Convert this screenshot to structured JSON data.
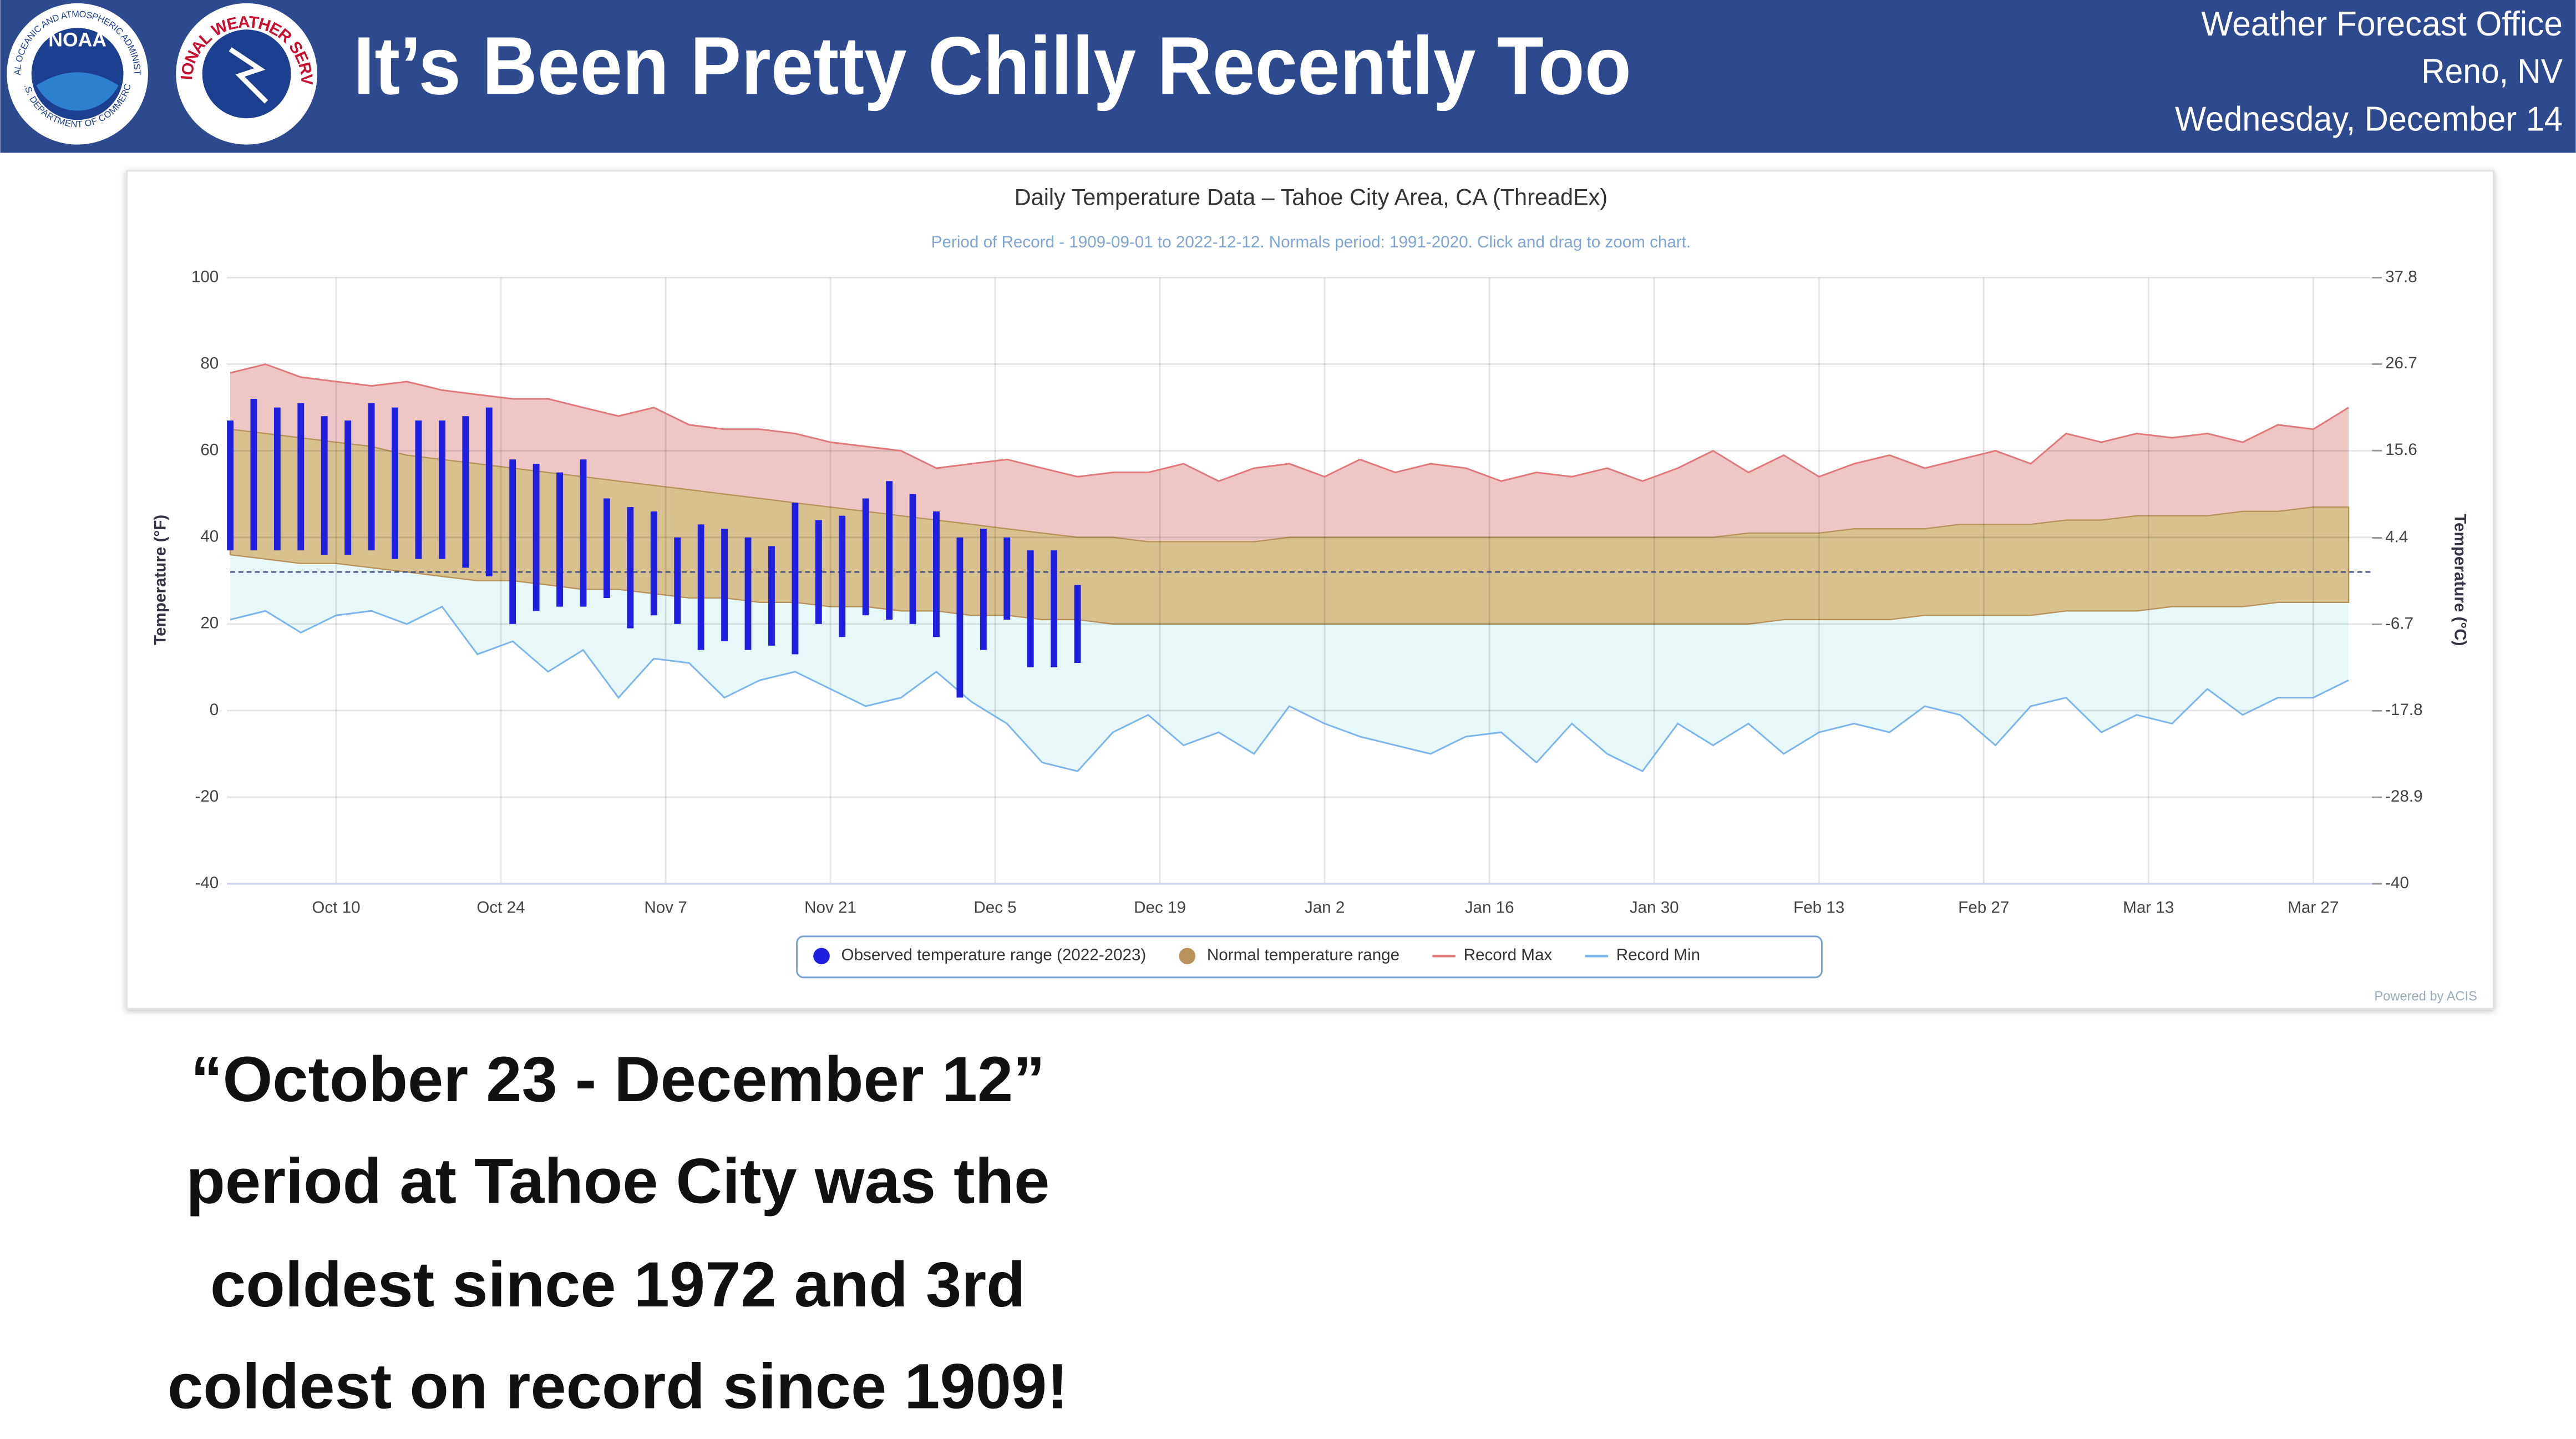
{
  "header": {
    "title": "It’s Been Pretty Chilly Recently Too",
    "office": [
      "Weather Forecast Office",
      "Reno, NV",
      "Wednesday, December 14"
    ],
    "logos": {
      "noaa": "NOAA",
      "noaa_ring": "NATIONAL OCEANIC AND ATMOSPHERIC ADMINISTRATION",
      "noaa_ring_bottom": "U.S. DEPARTMENT OF COMMERCE",
      "nws_ring": "NATIONAL WEATHER SERVICE"
    }
  },
  "chart_data": {
    "type": "temperature-range",
    "title": "Daily Temperature Data – Tahoe City Area, CA (ThreadEx)",
    "subtitle": "Period of Record - 1909-09-01 to 2022-12-12. Normals period: 1991-2020. Click and drag to zoom chart.",
    "y_label": "Temperature (°F)",
    "y2_label": "Temperature (°C)",
    "credit": "Powered by ACIS",
    "xlim": [
      "Oct 1",
      "Apr 1"
    ],
    "xticks": [
      "Oct 10",
      "Oct 24",
      "Nov 7",
      "Nov 21",
      "Dec 5",
      "Dec 19",
      "Jan 2",
      "Jan 16",
      "Jan 30",
      "Feb 13",
      "Feb 27",
      "Mar 13",
      "Mar 27"
    ],
    "ylim": [
      -40,
      100
    ],
    "yticks": [
      -40,
      -20,
      0,
      20,
      40,
      60,
      80,
      100
    ],
    "y2lim": [
      -40,
      37.8
    ],
    "y2ticks": [
      -40,
      -28.9,
      -17.8,
      -6.7,
      4.4,
      15.6,
      26.7,
      37.8
    ],
    "grid": true,
    "reference_line": 32,
    "legend": "bottom",
    "x": [
      "Oct 1",
      "Oct 4",
      "Oct 7",
      "Oct 10",
      "Oct 13",
      "Oct 16",
      "Oct 19",
      "Oct 22",
      "Oct 25",
      "Oct 28",
      "Oct 31",
      "Nov 3",
      "Nov 6",
      "Nov 9",
      "Nov 12",
      "Nov 15",
      "Nov 18",
      "Nov 21",
      "Nov 24",
      "Nov 27",
      "Nov 30",
      "Dec 3",
      "Dec 6",
      "Dec 9",
      "Dec 12",
      "Dec 15",
      "Dec 18",
      "Dec 21",
      "Dec 24",
      "Dec 27",
      "Dec 30",
      "Jan 2",
      "Jan 5",
      "Jan 8",
      "Jan 11",
      "Jan 14",
      "Jan 17",
      "Jan 20",
      "Jan 23",
      "Jan 26",
      "Jan 29",
      "Feb 1",
      "Feb 4",
      "Feb 7",
      "Feb 10",
      "Feb 13",
      "Feb 16",
      "Feb 19",
      "Feb 22",
      "Feb 25",
      "Feb 28",
      "Mar 3",
      "Mar 6",
      "Mar 9",
      "Mar 12",
      "Mar 15",
      "Mar 18",
      "Mar 21",
      "Mar 24",
      "Mar 27",
      "Mar 30"
    ],
    "series": [
      {
        "name": "Observed temperature range (2022-2023)",
        "type": "columnrange",
        "color": "#1f1fe0",
        "x": [
          "Oct 1",
          "Oct 3",
          "Oct 5",
          "Oct 7",
          "Oct 9",
          "Oct 11",
          "Oct 13",
          "Oct 15",
          "Oct 17",
          "Oct 19",
          "Oct 21",
          "Oct 23",
          "Oct 25",
          "Oct 27",
          "Oct 29",
          "Oct 31",
          "Nov 2",
          "Nov 4",
          "Nov 6",
          "Nov 8",
          "Nov 10",
          "Nov 12",
          "Nov 14",
          "Nov 16",
          "Nov 18",
          "Nov 20",
          "Nov 22",
          "Nov 24",
          "Nov 26",
          "Nov 28",
          "Nov 30",
          "Dec 2",
          "Dec 4",
          "Dec 6",
          "Dec 8",
          "Dec 10",
          "Dec 12"
        ],
        "low": [
          37,
          37,
          37,
          37,
          36,
          36,
          37,
          35,
          35,
          35,
          33,
          31,
          20,
          23,
          24,
          24,
          26,
          19,
          22,
          20,
          14,
          16,
          14,
          15,
          13,
          20,
          17,
          22,
          21,
          20,
          17,
          3,
          14,
          21,
          10,
          10,
          11
        ],
        "high": [
          67,
          72,
          70,
          71,
          68,
          67,
          71,
          70,
          67,
          67,
          68,
          70,
          58,
          57,
          55,
          58,
          49,
          47,
          46,
          40,
          43,
          42,
          40,
          38,
          48,
          44,
          45,
          49,
          53,
          50,
          46,
          40,
          42,
          40,
          37,
          37,
          29
        ]
      },
      {
        "name": "Normal temperature range",
        "type": "arearange",
        "color": "#b8925a",
        "fill": "#d8c08f",
        "high": [
          65,
          64,
          63,
          62,
          61,
          59,
          58,
          57,
          56,
          55,
          54,
          53,
          52,
          51,
          50,
          49,
          48,
          47,
          46,
          45,
          44,
          43,
          42,
          41,
          40,
          40,
          39,
          39,
          39,
          39,
          40,
          40,
          40,
          40,
          40,
          40,
          40,
          40,
          40,
          40,
          40,
          40,
          40,
          41,
          41,
          41,
          42,
          42,
          42,
          43,
          43,
          43,
          44,
          44,
          45,
          45,
          45,
          46,
          46,
          47,
          47
        ],
        "low": [
          36,
          35,
          34,
          34,
          33,
          32,
          31,
          30,
          30,
          29,
          28,
          28,
          27,
          26,
          26,
          25,
          25,
          24,
          24,
          23,
          23,
          22,
          22,
          21,
          21,
          20,
          20,
          20,
          20,
          20,
          20,
          20,
          20,
          20,
          20,
          20,
          20,
          20,
          20,
          20,
          20,
          20,
          20,
          20,
          21,
          21,
          21,
          21,
          22,
          22,
          22,
          22,
          23,
          23,
          23,
          24,
          24,
          24,
          25,
          25,
          25
        ]
      },
      {
        "name": "Record Max",
        "type": "line",
        "color": "#e07a7a",
        "fill": "#eec7c5",
        "values": [
          78,
          80,
          77,
          76,
          75,
          76,
          74,
          73,
          72,
          72,
          70,
          68,
          70,
          66,
          65,
          65,
          64,
          62,
          61,
          60,
          56,
          57,
          58,
          56,
          54,
          55,
          55,
          57,
          53,
          56,
          57,
          54,
          58,
          55,
          57,
          56,
          53,
          55,
          54,
          56,
          53,
          56,
          60,
          55,
          59,
          54,
          57,
          59,
          56,
          58,
          60,
          57,
          64,
          62,
          64,
          63,
          64,
          62,
          66,
          65,
          70
        ]
      },
      {
        "name": "Record Min",
        "type": "line",
        "color": "#7cb5ec",
        "fill": "#e6f8f8",
        "values": [
          21,
          23,
          18,
          22,
          23,
          20,
          24,
          13,
          16,
          9,
          14,
          3,
          12,
          11,
          3,
          7,
          9,
          5,
          1,
          3,
          9,
          2,
          -3,
          -12,
          -14,
          -5,
          -1,
          -8,
          -5,
          -10,
          1,
          -3,
          -6,
          -8,
          -10,
          -6,
          -5,
          -12,
          -3,
          -10,
          -14,
          -3,
          -8,
          -3,
          -10,
          -5,
          -3,
          -5,
          1,
          -1,
          -8,
          1,
          3,
          -5,
          -1,
          -3,
          5,
          -1,
          3,
          3,
          7
        ]
      }
    ]
  },
  "caption": [
    "“October 23 - December 12”",
    "period at Tahoe City was the",
    "coldest since 1972 and 3rd",
    "coldest on record since 1909!"
  ]
}
